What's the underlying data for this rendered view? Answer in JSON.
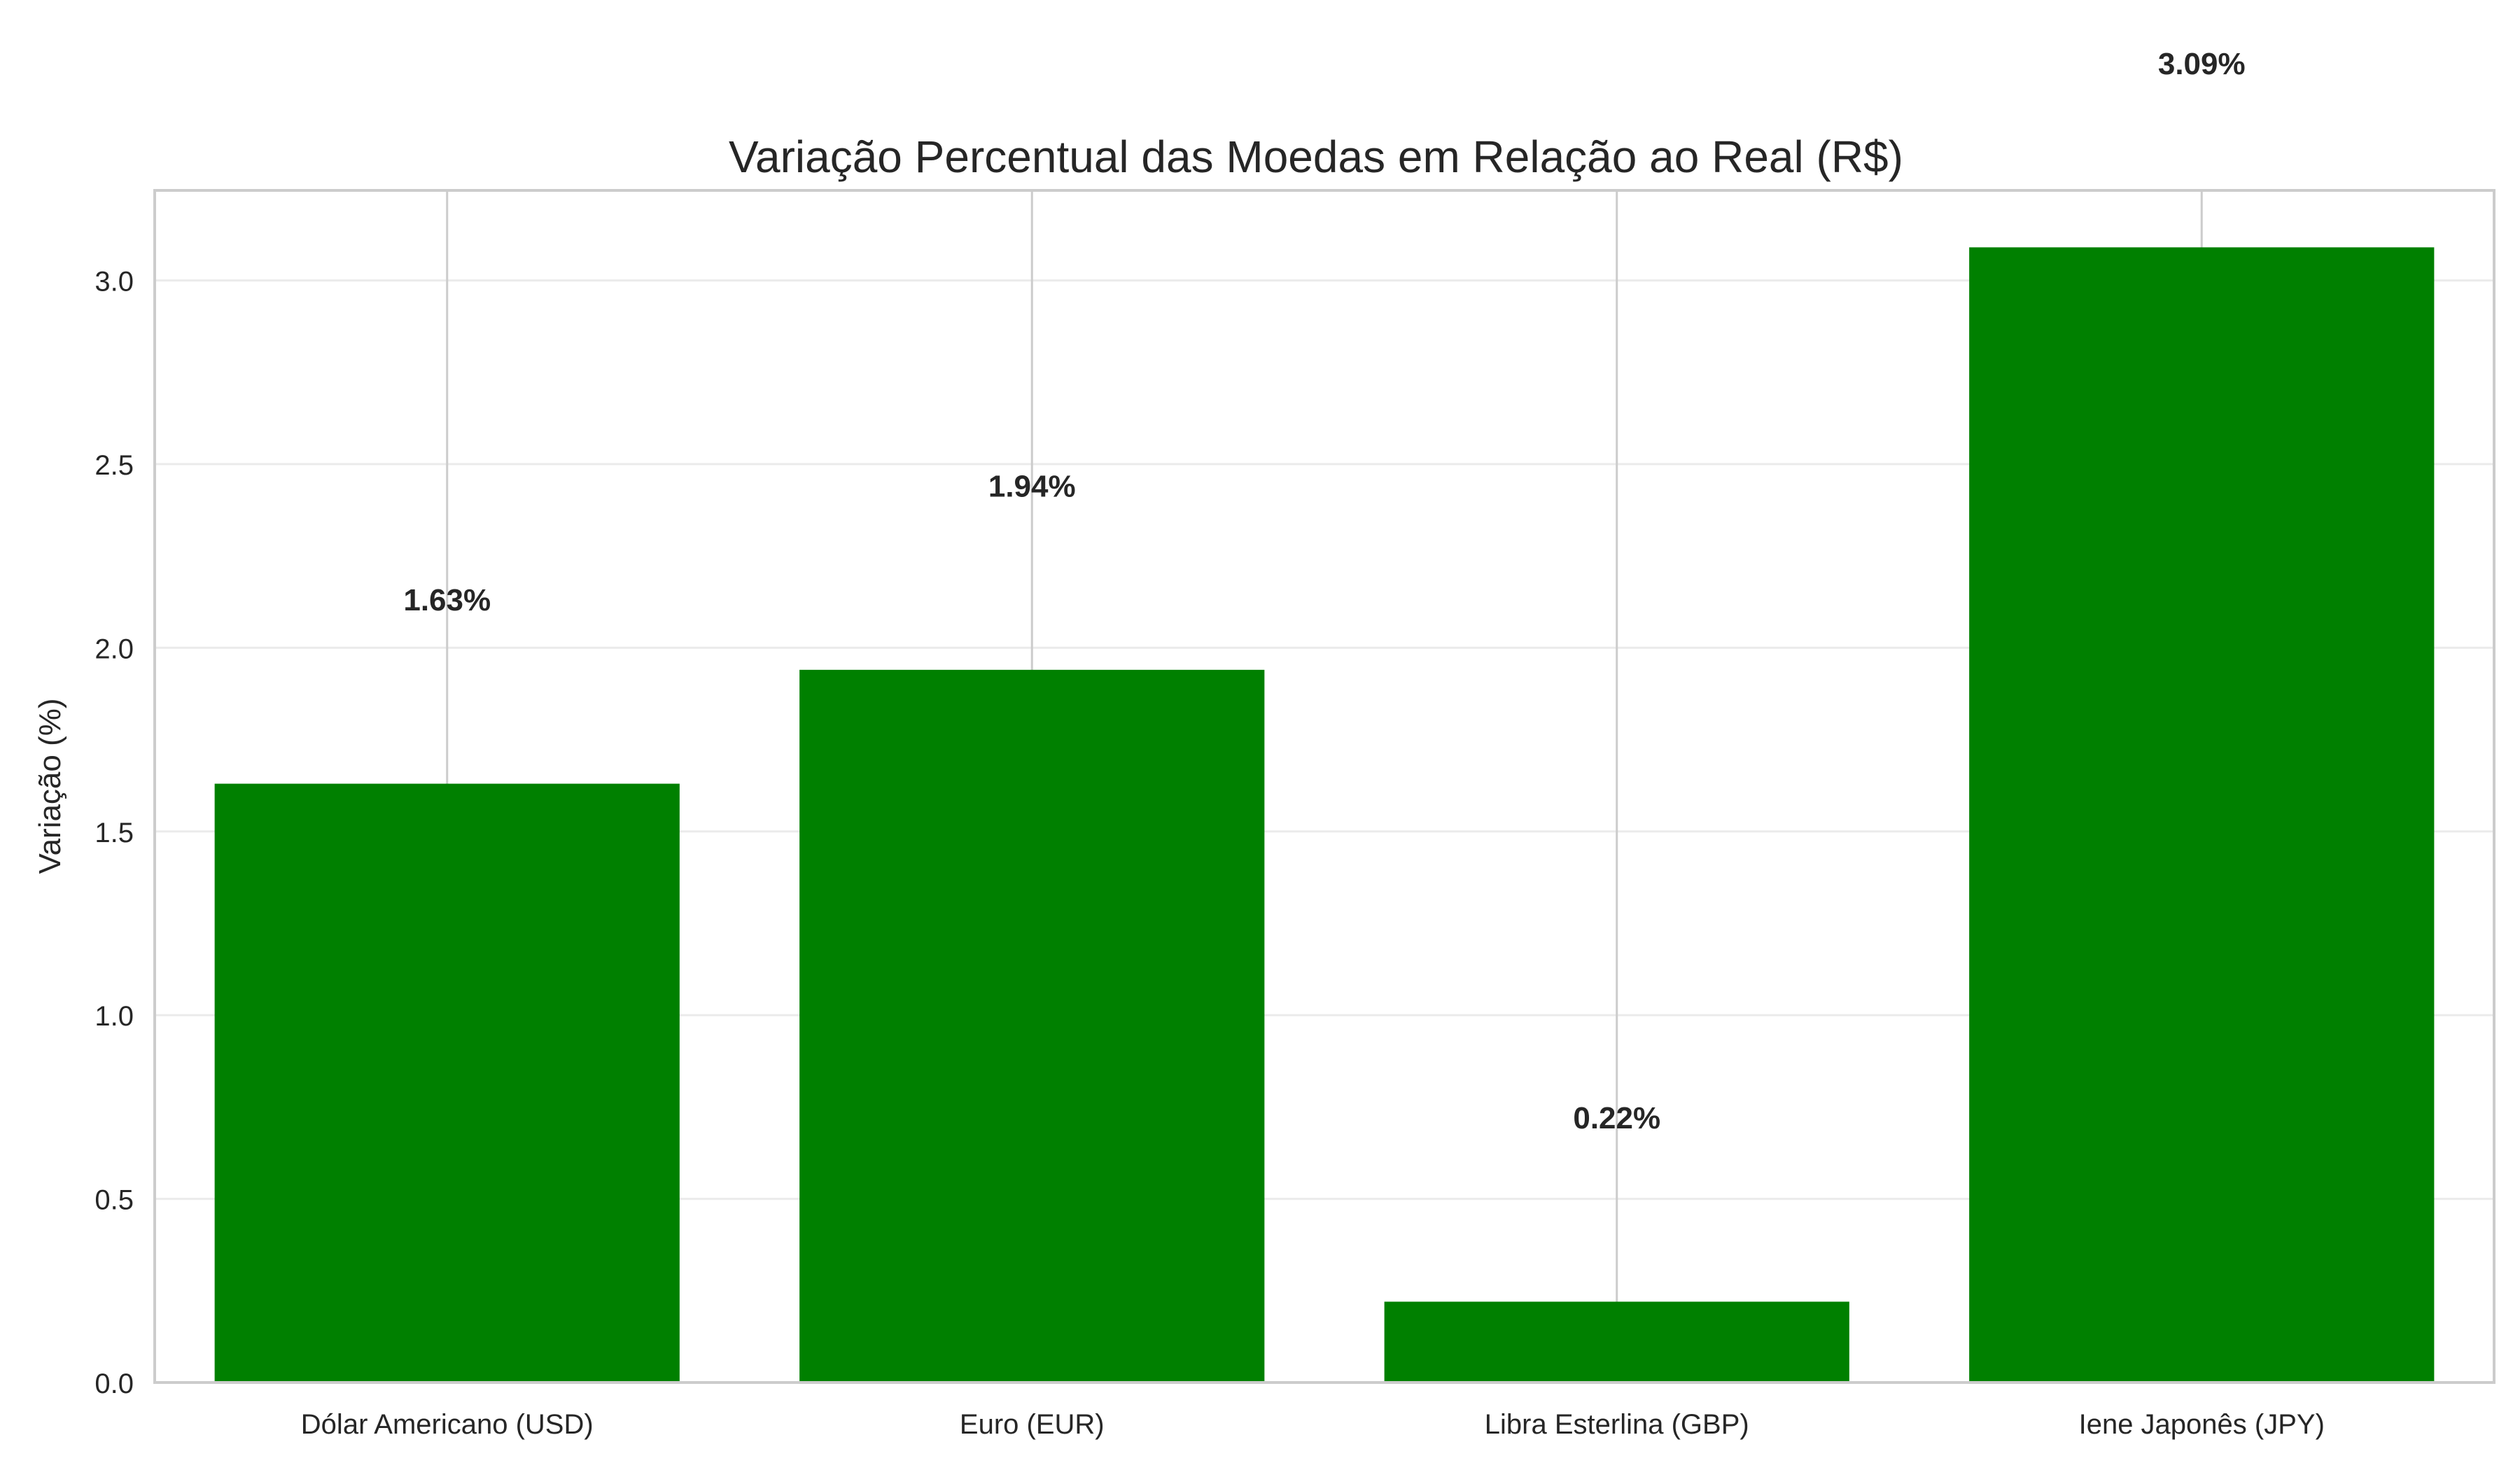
{
  "chart_data": {
    "type": "bar",
    "title": "Variação Percentual das Moedas em Relação ao Real (R$)",
    "xlabel": "",
    "ylabel": "Variação (%)",
    "categories": [
      "Dólar Americano (USD)",
      "Euro (EUR)",
      "Libra Esterlina (GBP)",
      "Iene Japonês (JPY)"
    ],
    "values": [
      1.63,
      1.94,
      0.22,
      3.09
    ],
    "data_labels": [
      "1.63%",
      "1.94%",
      "0.22%",
      "3.09%"
    ],
    "ylim": [
      0,
      3.245
    ],
    "yticks": [
      0.0,
      0.5,
      1.0,
      1.5,
      2.0,
      2.5,
      3.0
    ],
    "ytick_labels": [
      "0.0",
      "0.5",
      "1.0",
      "1.5",
      "2.0",
      "2.5",
      "3.0"
    ],
    "grid": true,
    "bar_color": "#008000",
    "grid_color": "#ebebeb",
    "spine_color": "#cccccc"
  }
}
